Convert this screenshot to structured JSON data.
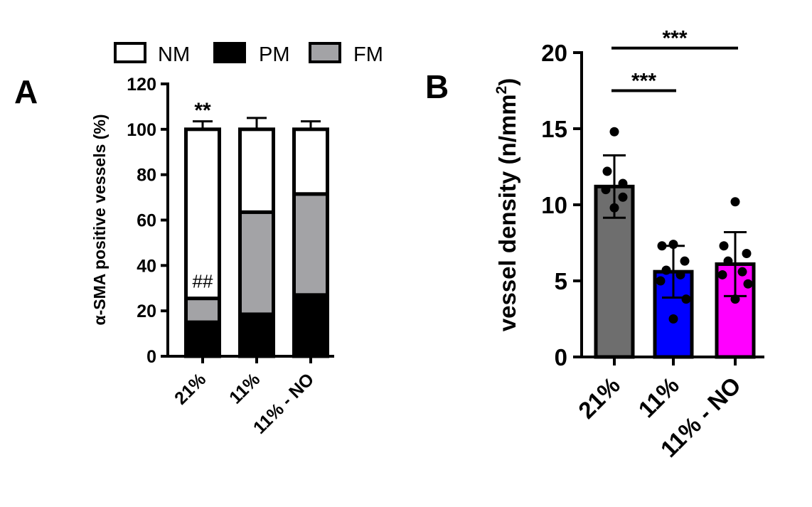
{
  "panels": {
    "A": {
      "letter": "A"
    },
    "B": {
      "letter": "B"
    }
  },
  "colors": {
    "NM": "#ffffff",
    "PM": "#000000",
    "FM": "#a3a3a6",
    "bar_21": "#6e6e6e",
    "bar_11": "#0000ff",
    "bar_11NO": "#ff00ff"
  },
  "chart_data": [
    {
      "type": "bar",
      "stacked": true,
      "categories": [
        "21%",
        "11%",
        "11% - NO"
      ],
      "ylabel": "α-SMA positive vessels (%)",
      "xlabel": "",
      "ylim": [
        0,
        120
      ],
      "yticks": [
        "0",
        "20",
        "40",
        "60",
        "80",
        "100",
        "120"
      ],
      "legend": {
        "placement": "top",
        "entries": [
          "NM",
          "PM",
          "FM"
        ]
      },
      "series": [
        {
          "name": "PM",
          "values": [
            15,
            18.5,
            27
          ],
          "error": [
            3.5,
            2,
            3
          ]
        },
        {
          "name": "FM",
          "values": [
            10.5,
            45,
            44.5
          ],
          "error": [
            3,
            5,
            6
          ]
        },
        {
          "name": "NM",
          "values": [
            74.5,
            36.5,
            28.5
          ],
          "error": [
            3.5,
            5,
            3.5
          ]
        }
      ],
      "annotations": [
        {
          "text": "**",
          "category": "21%",
          "at": 104
        },
        {
          "text": "##",
          "category": "21%",
          "at": 29
        }
      ]
    },
    {
      "type": "bar",
      "categories": [
        "21%",
        "11%",
        "11% - NO"
      ],
      "ylabel": "vessel density (n/mm²)",
      "ylabel_main": "vessel density (n/mm",
      "ylabel_sup": "2",
      "ylabel_end": ")",
      "xlabel": "",
      "ylim": [
        0,
        20
      ],
      "yticks": [
        "0",
        "5",
        "10",
        "15",
        "20"
      ],
      "values": [
        11.2,
        5.6,
        6.1
      ],
      "error": [
        2.05,
        1.7,
        2.1
      ],
      "points": [
        [
          14.8,
          12.2,
          11.4,
          11.0,
          10.5,
          9.8
        ],
        [
          7.4,
          7.3,
          6.3,
          5.7,
          5.4,
          5.0,
          3.8,
          2.5
        ],
        [
          10.2,
          7.3,
          6.8,
          6.3,
          5.6,
          5.4,
          4.8,
          3.8
        ]
      ],
      "significance": [
        {
          "from": "21%",
          "to": "11%",
          "label": "***",
          "at": 17.5
        },
        {
          "from": "21%",
          "to": "11% - NO",
          "label": "***",
          "at": 20.3
        }
      ]
    }
  ]
}
